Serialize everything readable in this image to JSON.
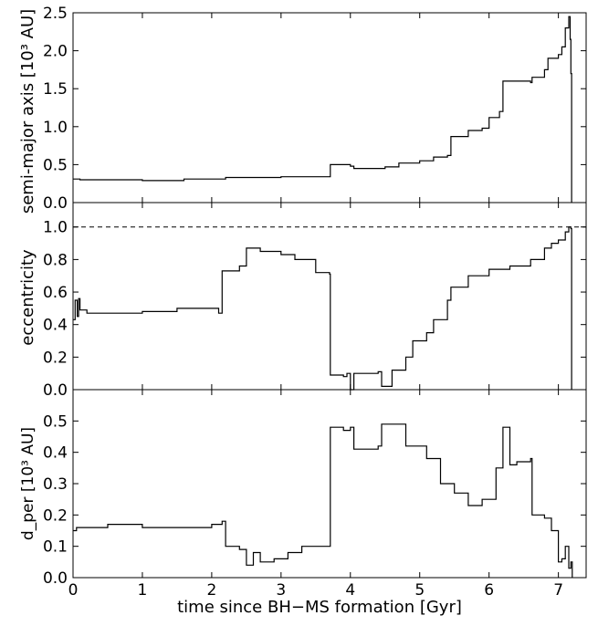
{
  "chart_data": [
    {
      "type": "line",
      "panel": "top",
      "ylabel": "semi-major axis [10³ AU]",
      "ylim": [
        0,
        2.5
      ],
      "yticks": [
        "0.0",
        "0.5",
        "1.0",
        "1.5",
        "2.0",
        "2.5"
      ],
      "series": [
        {
          "x": [
            0.0,
            0.1,
            0.5,
            1.0,
            1.5,
            1.6,
            2.0,
            2.2,
            2.5,
            3.0,
            3.7,
            3.71,
            4.0,
            4.05,
            4.5,
            4.7,
            5.0,
            5.2,
            5.4,
            5.45,
            5.7,
            5.9,
            6.0,
            6.15,
            6.2,
            6.6,
            6.62,
            6.8,
            6.85,
            7.0,
            7.05,
            7.1,
            7.15,
            7.17,
            7.18,
            7.19
          ],
          "y": [
            0.31,
            0.3,
            0.3,
            0.29,
            0.29,
            0.31,
            0.31,
            0.33,
            0.33,
            0.34,
            0.34,
            0.5,
            0.48,
            0.45,
            0.47,
            0.52,
            0.55,
            0.6,
            0.62,
            0.87,
            0.95,
            0.98,
            1.12,
            1.2,
            1.6,
            1.58,
            1.65,
            1.75,
            1.9,
            1.95,
            2.05,
            2.3,
            2.45,
            2.15,
            1.7,
            0.0
          ]
        }
      ]
    },
    {
      "type": "line",
      "panel": "middle",
      "ylabel": "eccentricity",
      "ylim": [
        0,
        1.15
      ],
      "yticks": [
        "0.0",
        "0.2",
        "0.4",
        "0.6",
        "0.8",
        "1.0"
      ],
      "reference_line": {
        "y": 1.0,
        "style": "dashed"
      },
      "series": [
        {
          "x": [
            0.0,
            0.03,
            0.06,
            0.08,
            0.1,
            0.2,
            0.5,
            1.0,
            1.5,
            1.7,
            1.9,
            2.1,
            2.15,
            2.4,
            2.5,
            2.7,
            3.0,
            3.2,
            3.5,
            3.7,
            3.71,
            3.9,
            3.95,
            4.0,
            4.05,
            4.4,
            4.45,
            4.6,
            4.8,
            4.9,
            5.1,
            5.2,
            5.4,
            5.45,
            5.7,
            6.0,
            6.3,
            6.6,
            6.8,
            6.9,
            7.0,
            7.1,
            7.15,
            7.18,
            7.19
          ],
          "y": [
            0.43,
            0.55,
            0.45,
            0.56,
            0.49,
            0.47,
            0.47,
            0.48,
            0.5,
            0.5,
            0.5,
            0.47,
            0.73,
            0.76,
            0.87,
            0.85,
            0.83,
            0.8,
            0.72,
            0.71,
            0.09,
            0.08,
            0.1,
            0.0,
            0.1,
            0.11,
            0.02,
            0.12,
            0.2,
            0.3,
            0.35,
            0.43,
            0.55,
            0.63,
            0.7,
            0.74,
            0.76,
            0.8,
            0.87,
            0.9,
            0.92,
            0.97,
            1.0,
            0.99,
            0.0
          ]
        }
      ]
    },
    {
      "type": "line",
      "panel": "bottom",
      "ylabel": "d_per [10³ AU]",
      "xlabel": "time since BH−MS formation [Gyr]",
      "xlim": [
        0,
        7.4
      ],
      "xticks": [
        "0",
        "1",
        "2",
        "3",
        "4",
        "5",
        "6",
        "7"
      ],
      "ylim": [
        0,
        0.6
      ],
      "yticks": [
        "0.0",
        "0.1",
        "0.2",
        "0.3",
        "0.4",
        "0.5"
      ],
      "series": [
        {
          "x": [
            0.0,
            0.05,
            0.1,
            0.5,
            1.0,
            1.5,
            2.0,
            2.15,
            2.2,
            2.4,
            2.5,
            2.6,
            2.7,
            2.9,
            3.1,
            3.3,
            3.7,
            3.71,
            3.9,
            4.0,
            4.05,
            4.4,
            4.45,
            4.8,
            5.1,
            5.3,
            5.5,
            5.7,
            5.9,
            6.1,
            6.2,
            6.3,
            6.4,
            6.6,
            6.62,
            6.8,
            6.9,
            7.0,
            7.05,
            7.1,
            7.15,
            7.18,
            7.2
          ],
          "y": [
            0.15,
            0.16,
            0.16,
            0.17,
            0.16,
            0.16,
            0.17,
            0.18,
            0.1,
            0.09,
            0.04,
            0.08,
            0.05,
            0.06,
            0.08,
            0.1,
            0.1,
            0.48,
            0.47,
            0.48,
            0.41,
            0.42,
            0.49,
            0.42,
            0.38,
            0.3,
            0.27,
            0.23,
            0.25,
            0.35,
            0.48,
            0.36,
            0.37,
            0.38,
            0.2,
            0.19,
            0.15,
            0.05,
            0.06,
            0.1,
            0.03,
            0.05,
            0.0
          ]
        }
      ]
    }
  ]
}
